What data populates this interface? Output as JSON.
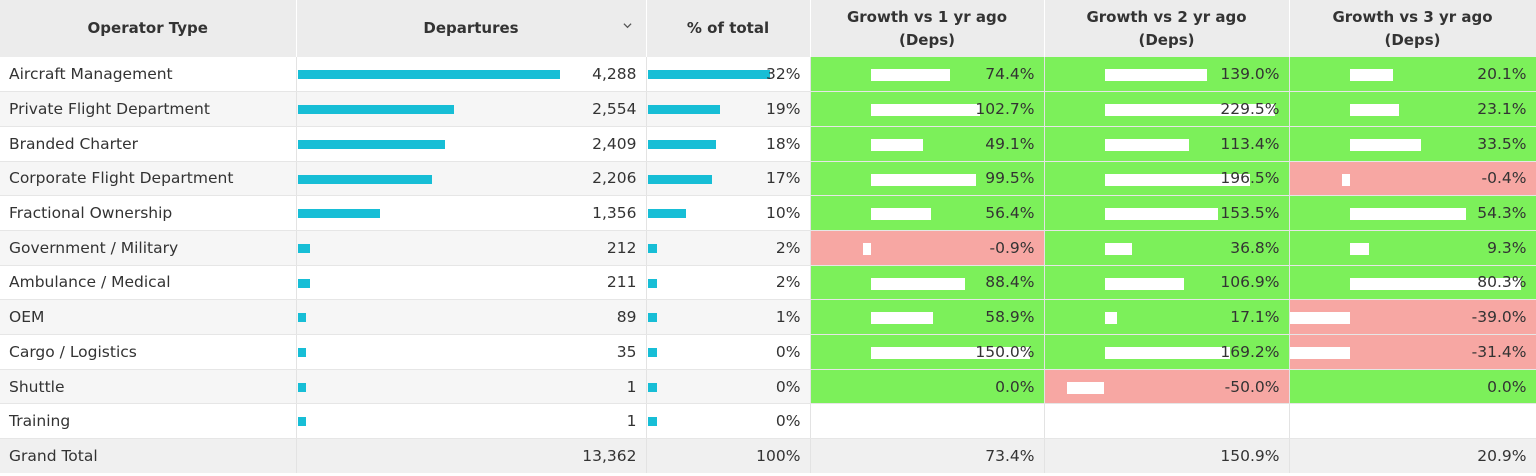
{
  "headers": {
    "operator_type": "Operator Type",
    "departures": "Departures",
    "pct_total": "% of total",
    "g1_line1": "Growth vs 1 yr ago",
    "g1_line2": "(Deps)",
    "g2_line1": "Growth vs 2 yr ago",
    "g2_line2": "(Deps)",
    "g3_line1": "Growth vs 3 yr ago",
    "g3_line2": "(Deps)"
  },
  "icons": {
    "sort": "chevron-down-icon"
  },
  "colors": {
    "bar": "#17bed6",
    "positive": "#7cf05a",
    "negative": "#f7a7a3"
  },
  "rows": [
    {
      "op": "Aircraft Management",
      "dep": "4,288",
      "pct": "32%",
      "g1": "74.4%",
      "g2": "139.0%",
      "g3": "20.1%"
    },
    {
      "op": "Private Flight Department",
      "dep": "2,554",
      "pct": "19%",
      "g1": "102.7%",
      "g2": "229.5%",
      "g3": "23.1%"
    },
    {
      "op": "Branded Charter",
      "dep": "2,409",
      "pct": "18%",
      "g1": "49.1%",
      "g2": "113.4%",
      "g3": "33.5%"
    },
    {
      "op": "Corporate Flight Department",
      "dep": "2,206",
      "pct": "17%",
      "g1": "99.5%",
      "g2": "196.5%",
      "g3": "-0.4%"
    },
    {
      "op": "Fractional Ownership",
      "dep": "1,356",
      "pct": "10%",
      "g1": "56.4%",
      "g2": "153.5%",
      "g3": "54.3%"
    },
    {
      "op": "Government / Military",
      "dep": "212",
      "pct": "2%",
      "g1": "-0.9%",
      "g2": "36.8%",
      "g3": "9.3%"
    },
    {
      "op": "Ambulance / Medical",
      "dep": "211",
      "pct": "2%",
      "g1": "88.4%",
      "g2": "106.9%",
      "g3": "80.3%"
    },
    {
      "op": "OEM",
      "dep": "89",
      "pct": "1%",
      "g1": "58.9%",
      "g2": "17.1%",
      "g3": "-39.0%"
    },
    {
      "op": "Cargo / Logistics",
      "dep": "35",
      "pct": "0%",
      "g1": "150.0%",
      "g2": "169.2%",
      "g3": "-31.4%"
    },
    {
      "op": "Shuttle",
      "dep": "1",
      "pct": "0%",
      "g1": "0.0%",
      "g2": "-50.0%",
      "g3": "0.0%"
    },
    {
      "op": "Training",
      "dep": "1",
      "pct": "0%",
      "g1": "",
      "g2": "",
      "g3": ""
    }
  ],
  "total": {
    "op": "Grand Total",
    "dep": "13,362",
    "pct": "100%",
    "g1": "73.4%",
    "g2": "150.9%",
    "g3": "20.9%"
  },
  "chart_data": {
    "type": "table",
    "columns": [
      "Operator Type",
      "Departures",
      "% of total",
      "Growth vs 1 yr ago (Deps)",
      "Growth vs 2 yr ago (Deps)",
      "Growth vs 3 yr ago (Deps)"
    ],
    "categories": [
      "Aircraft Management",
      "Private Flight Department",
      "Branded Charter",
      "Corporate Flight Department",
      "Fractional Ownership",
      "Government / Military",
      "Ambulance / Medical",
      "OEM",
      "Cargo / Logistics",
      "Shuttle",
      "Training"
    ],
    "series": [
      {
        "name": "Departures",
        "values": [
          4288,
          2554,
          2409,
          2206,
          1356,
          212,
          211,
          89,
          35,
          1,
          1
        ]
      },
      {
        "name": "% of total",
        "values": [
          32,
          19,
          18,
          17,
          10,
          2,
          2,
          1,
          0,
          0,
          0
        ]
      },
      {
        "name": "Growth vs 1 yr ago (Deps)",
        "values": [
          74.4,
          102.7,
          49.1,
          99.5,
          56.4,
          -0.9,
          88.4,
          58.9,
          150.0,
          0.0,
          null
        ]
      },
      {
        "name": "Growth vs 2 yr ago (Deps)",
        "values": [
          139.0,
          229.5,
          113.4,
          196.5,
          153.5,
          36.8,
          106.9,
          17.1,
          169.2,
          -50.0,
          null
        ]
      },
      {
        "name": "Growth vs 3 yr ago (Deps)",
        "values": [
          20.1,
          23.1,
          33.5,
          -0.4,
          54.3,
          9.3,
          80.3,
          -39.0,
          -31.4,
          0.0,
          null
        ]
      }
    ]
  }
}
